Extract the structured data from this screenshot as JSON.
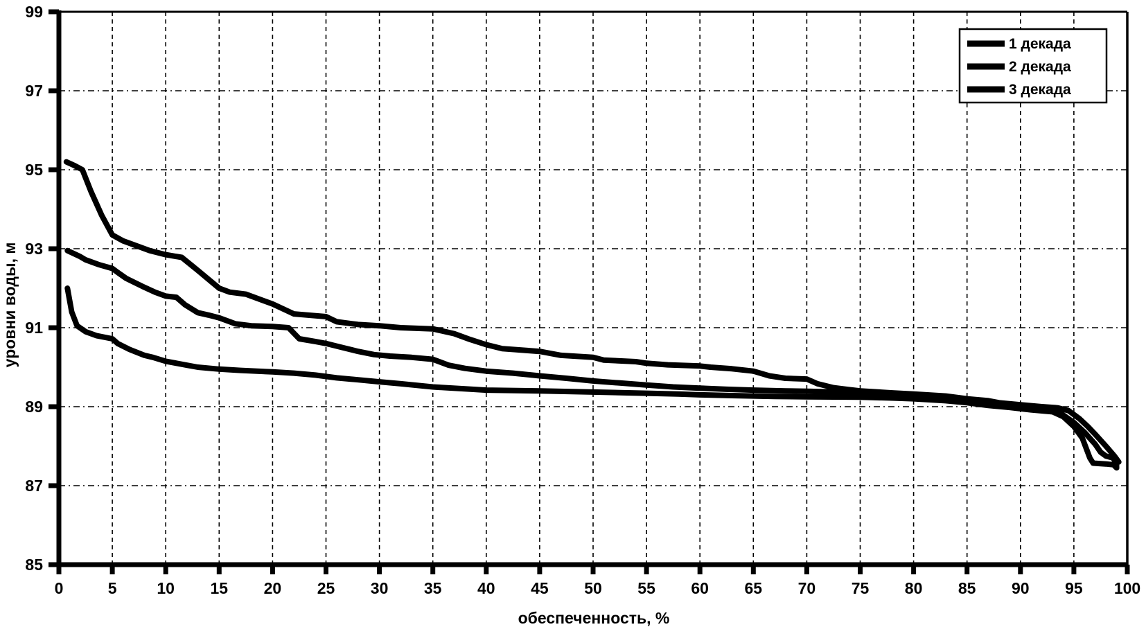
{
  "chart_data": {
    "type": "line",
    "title": "",
    "xlabel": "обеспеченность, %",
    "ylabel": "уровни воды, м",
    "xlim": [
      0,
      100
    ],
    "ylim": [
      85,
      99
    ],
    "xticks": [
      0,
      5,
      10,
      15,
      20,
      25,
      30,
      35,
      40,
      45,
      50,
      55,
      60,
      65,
      70,
      75,
      80,
      85,
      90,
      95,
      100
    ],
    "yticks": [
      85,
      87,
      89,
      91,
      93,
      95,
      97,
      99
    ],
    "grid": true,
    "grid_style": "dashed",
    "legend_position": "top-right",
    "line_color": "#000000",
    "background_color": "#ffffff",
    "series": [
      {
        "name": "1 декада",
        "points": [
          [
            0.7,
            95.2
          ],
          [
            1.5,
            95.1
          ],
          [
            2.2,
            95.0
          ],
          [
            3,
            94.45
          ],
          [
            4,
            93.85
          ],
          [
            5,
            93.35
          ],
          [
            6,
            93.2
          ],
          [
            7,
            93.1
          ],
          [
            8.5,
            92.95
          ],
          [
            10,
            92.85
          ],
          [
            11.5,
            92.78
          ],
          [
            13,
            92.45
          ],
          [
            15,
            92.0
          ],
          [
            16,
            91.9
          ],
          [
            17.5,
            91.85
          ],
          [
            20,
            91.6
          ],
          [
            22,
            91.35
          ],
          [
            25,
            91.28
          ],
          [
            26,
            91.15
          ],
          [
            28,
            91.08
          ],
          [
            30,
            91.05
          ],
          [
            32,
            91.0
          ],
          [
            35,
            90.97
          ],
          [
            37,
            90.85
          ],
          [
            38.5,
            90.7
          ],
          [
            40,
            90.57
          ],
          [
            41.5,
            90.47
          ],
          [
            44,
            90.42
          ],
          [
            45,
            90.4
          ],
          [
            47,
            90.3
          ],
          [
            50,
            90.25
          ],
          [
            51,
            90.18
          ],
          [
            54,
            90.14
          ],
          [
            55,
            90.1
          ],
          [
            57,
            90.06
          ],
          [
            60,
            90.03
          ],
          [
            61,
            90.0
          ],
          [
            63,
            89.96
          ],
          [
            65,
            89.9
          ],
          [
            66.5,
            89.78
          ],
          [
            68,
            89.72
          ],
          [
            70,
            89.7
          ],
          [
            71,
            89.58
          ],
          [
            72.5,
            89.48
          ],
          [
            74,
            89.43
          ],
          [
            75,
            89.4
          ],
          [
            78,
            89.35
          ],
          [
            80,
            89.32
          ],
          [
            83,
            89.27
          ],
          [
            85,
            89.2
          ],
          [
            87,
            89.15
          ],
          [
            88,
            89.1
          ],
          [
            90,
            89.05
          ],
          [
            92,
            89.0
          ],
          [
            93.5,
            88.97
          ],
          [
            94.5,
            88.9
          ],
          [
            95.5,
            88.7
          ],
          [
            96.3,
            88.5
          ],
          [
            97,
            88.3
          ],
          [
            98,
            88.0
          ],
          [
            98.8,
            87.75
          ],
          [
            99.2,
            87.6
          ]
        ]
      },
      {
        "name": "2 декада",
        "points": [
          [
            0.8,
            92.95
          ],
          [
            2,
            92.8
          ],
          [
            2.5,
            92.72
          ],
          [
            3.7,
            92.6
          ],
          [
            5,
            92.5
          ],
          [
            5.5,
            92.4
          ],
          [
            6.3,
            92.25
          ],
          [
            7.8,
            92.05
          ],
          [
            9,
            91.9
          ],
          [
            10,
            91.8
          ],
          [
            11,
            91.77
          ],
          [
            11.8,
            91.58
          ],
          [
            13,
            91.38
          ],
          [
            14,
            91.32
          ],
          [
            15,
            91.25
          ],
          [
            16.5,
            91.1
          ],
          [
            18,
            91.05
          ],
          [
            20,
            91.03
          ],
          [
            21.5,
            91.0
          ],
          [
            22.5,
            90.72
          ],
          [
            24,
            90.65
          ],
          [
            25,
            90.6
          ],
          [
            26.5,
            90.5
          ],
          [
            28,
            90.4
          ],
          [
            29.5,
            90.32
          ],
          [
            31,
            90.28
          ],
          [
            33,
            90.25
          ],
          [
            35,
            90.2
          ],
          [
            36.5,
            90.05
          ],
          [
            38,
            89.97
          ],
          [
            40,
            89.9
          ],
          [
            42.5,
            89.85
          ],
          [
            45,
            89.78
          ],
          [
            47.5,
            89.72
          ],
          [
            50,
            89.65
          ],
          [
            52.5,
            89.6
          ],
          [
            55,
            89.55
          ],
          [
            57.5,
            89.5
          ],
          [
            60,
            89.47
          ],
          [
            62.5,
            89.44
          ],
          [
            65,
            89.42
          ],
          [
            68,
            89.4
          ],
          [
            70,
            89.39
          ],
          [
            73,
            89.37
          ],
          [
            75,
            89.35
          ],
          [
            78,
            89.31
          ],
          [
            80,
            89.28
          ],
          [
            83,
            89.24
          ],
          [
            85,
            89.17
          ],
          [
            87,
            89.1
          ],
          [
            88,
            89.05
          ],
          [
            90,
            89.0
          ],
          [
            92,
            88.95
          ],
          [
            93.5,
            88.88
          ],
          [
            95,
            88.6
          ],
          [
            96,
            88.35
          ],
          [
            97,
            88.05
          ],
          [
            97.5,
            87.85
          ],
          [
            98,
            87.75
          ],
          [
            98.7,
            87.7
          ],
          [
            99,
            87.5
          ]
        ]
      },
      {
        "name": "3 декада",
        "points": [
          [
            0.8,
            92.0
          ],
          [
            1.2,
            91.4
          ],
          [
            1.7,
            91.05
          ],
          [
            2.5,
            90.9
          ],
          [
            3.5,
            90.8
          ],
          [
            5,
            90.72
          ],
          [
            5.5,
            90.6
          ],
          [
            6.6,
            90.45
          ],
          [
            8,
            90.3
          ],
          [
            8.8,
            90.25
          ],
          [
            10,
            90.15
          ],
          [
            11,
            90.1
          ],
          [
            12,
            90.05
          ],
          [
            13,
            90.0
          ],
          [
            15,
            89.95
          ],
          [
            17,
            89.92
          ],
          [
            20,
            89.88
          ],
          [
            22,
            89.85
          ],
          [
            24,
            89.8
          ],
          [
            26,
            89.73
          ],
          [
            28,
            89.68
          ],
          [
            30,
            89.63
          ],
          [
            32,
            89.58
          ],
          [
            35,
            89.5
          ],
          [
            38,
            89.45
          ],
          [
            40,
            89.42
          ],
          [
            45,
            89.4
          ],
          [
            50,
            89.37
          ],
          [
            55,
            89.34
          ],
          [
            58,
            89.32
          ],
          [
            60,
            89.3
          ],
          [
            63,
            89.28
          ],
          [
            67,
            89.26
          ],
          [
            70,
            89.25
          ],
          [
            75,
            89.24
          ],
          [
            78,
            89.22
          ],
          [
            80,
            89.2
          ],
          [
            83,
            89.15
          ],
          [
            85,
            89.1
          ],
          [
            87,
            89.03
          ],
          [
            89,
            88.98
          ],
          [
            91,
            88.92
          ],
          [
            93,
            88.87
          ],
          [
            94,
            88.75
          ],
          [
            95,
            88.5
          ],
          [
            95.8,
            88.2
          ],
          [
            96.5,
            87.7
          ],
          [
            96.8,
            87.57
          ],
          [
            98,
            87.55
          ],
          [
            98.7,
            87.53
          ],
          [
            99,
            87.45
          ]
        ]
      }
    ]
  }
}
